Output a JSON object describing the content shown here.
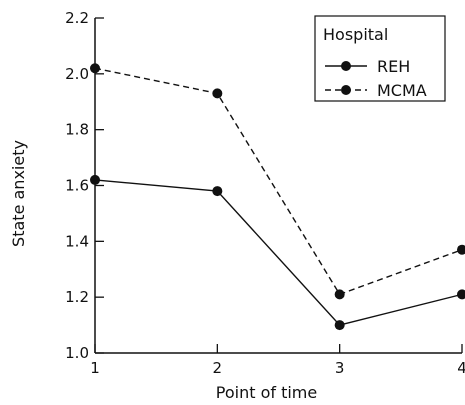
{
  "chart_data": {
    "type": "line",
    "xlabel": "Point of time",
    "ylabel": "State anxiety",
    "x": [
      1,
      2,
      3,
      4
    ],
    "xlim": [
      1,
      4
    ],
    "ylim": [
      1.0,
      2.2
    ],
    "xticks": [
      "1",
      "2",
      "3",
      "4"
    ],
    "yticks": [
      "1.0",
      "1.2",
      "1.4",
      "1.6",
      "1.8",
      "2.0",
      "2.2"
    ],
    "grid": false,
    "legend": {
      "title": "Hospital",
      "placement": "top-right"
    },
    "series": [
      {
        "name": "REH",
        "style": "solid",
        "values": [
          1.62,
          1.58,
          1.1,
          1.21
        ]
      },
      {
        "name": "MCMA",
        "style": "dashed",
        "values": [
          2.02,
          1.93,
          1.21,
          1.37
        ]
      }
    ]
  }
}
